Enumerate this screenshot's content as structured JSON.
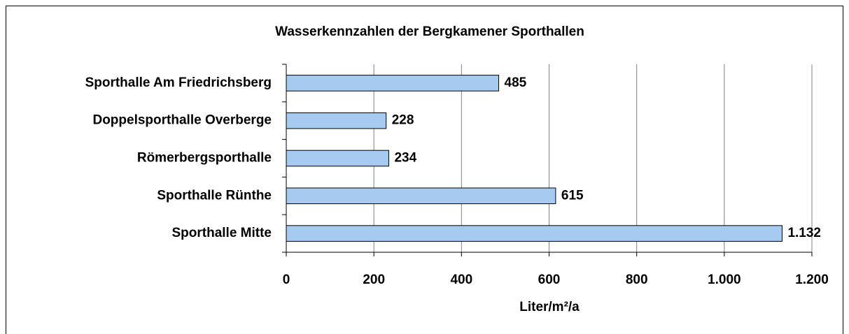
{
  "chart_data": {
    "type": "bar",
    "orientation": "horizontal",
    "title": "Wasserkennzahlen der Bergkamener Sporthallen",
    "x_label": "Liter/m²/a",
    "categories": [
      "Sporthalle Am Friedrichsberg",
      "Doppelsporthalle Overberge",
      "Römerbergsporthalle",
      "Sporthalle Rünthe",
      "Sporthalle Mitte"
    ],
    "values": [
      485,
      228,
      234,
      615,
      1132
    ],
    "value_labels": [
      "485",
      "228",
      "234",
      "615",
      "1.132"
    ],
    "color": "#a6caf0",
    "xlim": [
      0,
      1200
    ],
    "xticks": [
      0,
      200,
      400,
      600,
      800,
      {
        "value": 1000,
        "label": "1.000"
      },
      {
        "value": 1200,
        "label": "1.200"
      }
    ],
    "grid": true
  }
}
